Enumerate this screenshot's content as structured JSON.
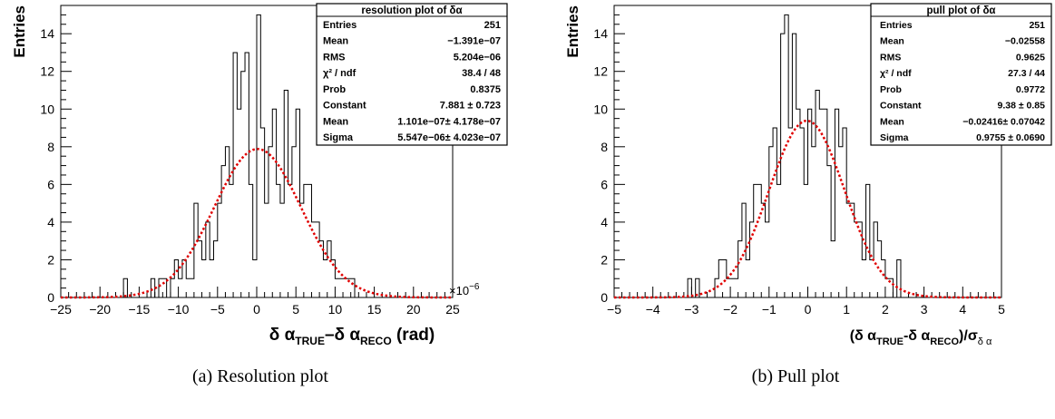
{
  "captions": {
    "a": "(a) Resolution plot",
    "b": "(b) Pull plot"
  },
  "chart_data": [
    {
      "type": "histogram",
      "title": "resolution plot of δα",
      "ylabel": "Entries",
      "xlabel": {
        "pre": "δ α",
        "sub1": "TRUE",
        "mid": "–δ α",
        "sub2": "RECO",
        "post": " (rad)"
      },
      "x_exponent": "×10",
      "x_exponent_power": "−6",
      "xlim": [
        -25,
        25
      ],
      "ylim": [
        0,
        15.5
      ],
      "xticks": [
        -25,
        -20,
        -15,
        -10,
        -5,
        0,
        5,
        10,
        15,
        20,
        25
      ],
      "xtick_labels": [
        "−25",
        "−20",
        "−15",
        "−10",
        "−5",
        "0",
        "5",
        "10",
        "15",
        "20",
        "25"
      ],
      "yticks": [
        0,
        2,
        4,
        6,
        8,
        10,
        12,
        14
      ],
      "bin_start": -25,
      "bin_width": 0.5,
      "bin_counts": [
        0,
        0,
        0,
        0,
        0,
        0,
        0,
        0,
        0,
        0,
        0,
        0,
        0,
        0,
        0,
        0,
        1,
        0,
        0,
        0,
        0,
        0,
        0,
        1,
        0,
        1,
        1,
        0,
        1,
        2,
        1,
        2,
        1,
        1,
        5,
        3,
        2,
        4,
        2,
        3,
        5,
        7,
        8,
        6,
        13,
        10,
        12,
        13,
        6,
        2,
        15,
        9,
        5,
        8,
        10,
        6,
        5,
        11,
        6,
        8,
        10,
        5,
        6,
        6,
        4,
        4,
        3,
        2,
        3,
        2,
        1,
        1,
        1,
        1,
        1,
        0,
        0,
        0,
        0,
        0,
        0,
        0,
        0,
        0,
        0,
        0,
        0,
        0,
        0,
        0,
        0,
        0,
        0,
        0,
        0,
        0,
        0,
        0,
        0,
        0
      ],
      "fit": {
        "type": "gaussian",
        "constant": 7.881,
        "mean": 0.1101,
        "sigma": 5.547
      },
      "stats_box": {
        "title": "resolution plot of δα",
        "rows": [
          {
            "label": "Entries",
            "value": "251"
          },
          {
            "label": "Mean",
            "value": "−1.391e−07"
          },
          {
            "label": "RMS",
            "value": "5.204e−06"
          },
          {
            "label": "χ² / ndf",
            "value": "38.4 / 48"
          },
          {
            "label": "Prob",
            "value": "0.8375"
          },
          {
            "label": "Constant",
            "value": "7.881 ± 0.723"
          },
          {
            "label": "Mean",
            "value": "1.101e−07± 4.178e−07"
          },
          {
            "label": "Sigma",
            "value": "5.547e−06± 4.023e−07"
          }
        ]
      },
      "colors": {
        "histogram": "#000000",
        "fit": "#e00000"
      }
    },
    {
      "type": "histogram",
      "title": "pull plot of δα",
      "ylabel": "Entries",
      "xlabel": {
        "pre": "(δ α",
        "sub1": "TRUE",
        "mid": "-δ α",
        "sub2": "RECO",
        "post": ")/σ",
        "sub3": "δ α"
      },
      "xlim": [
        -5,
        5
      ],
      "ylim": [
        0,
        15.5
      ],
      "xticks": [
        -5,
        -4,
        -3,
        -2,
        -1,
        0,
        1,
        2,
        3,
        4,
        5
      ],
      "xtick_labels": [
        "−5",
        "−4",
        "−3",
        "−2",
        "−1",
        "0",
        "1",
        "2",
        "3",
        "4",
        "5"
      ],
      "yticks": [
        0,
        2,
        4,
        6,
        8,
        10,
        12,
        14
      ],
      "bin_start": -5,
      "bin_width": 0.1,
      "bin_counts": [
        0,
        0,
        0,
        0,
        0,
        0,
        0,
        0,
        0,
        0,
        0,
        0,
        0,
        0,
        0,
        0,
        0,
        0,
        0,
        1,
        0,
        1,
        0,
        0,
        0,
        0,
        1,
        2,
        2,
        1,
        1,
        1,
        3,
        5,
        2,
        4,
        6,
        6,
        5,
        4,
        8,
        9,
        6,
        14,
        15,
        9,
        14,
        10,
        9,
        6,
        10,
        8,
        11,
        10,
        10,
        7,
        3,
        10,
        8,
        9,
        5,
        5,
        4,
        4,
        2,
        6,
        2,
        4,
        3,
        2,
        1,
        1,
        0,
        2,
        0,
        0,
        0,
        0,
        0,
        0,
        0,
        0,
        0,
        0,
        0,
        0,
        0,
        0,
        0,
        0,
        0,
        0,
        0,
        0,
        0,
        0,
        0,
        0,
        0,
        0
      ],
      "fit": {
        "type": "gaussian",
        "constant": 9.38,
        "mean": -0.02416,
        "sigma": 0.9755
      },
      "stats_box": {
        "title": "pull plot of δα",
        "rows": [
          {
            "label": "Entries",
            "value": "251"
          },
          {
            "label": "Mean",
            "value": "−0.02558"
          },
          {
            "label": "RMS",
            "value": "0.9625"
          },
          {
            "label": "χ² / ndf",
            "value": "27.3 / 44"
          },
          {
            "label": "Prob",
            "value": "0.9772"
          },
          {
            "label": "Constant",
            "value": "9.38 ± 0.85"
          },
          {
            "label": "Mean",
            "value": "−0.02416± 0.07042"
          },
          {
            "label": "Sigma",
            "value": "0.9755 ± 0.0690"
          }
        ]
      },
      "colors": {
        "histogram": "#000000",
        "fit": "#e00000"
      }
    }
  ]
}
